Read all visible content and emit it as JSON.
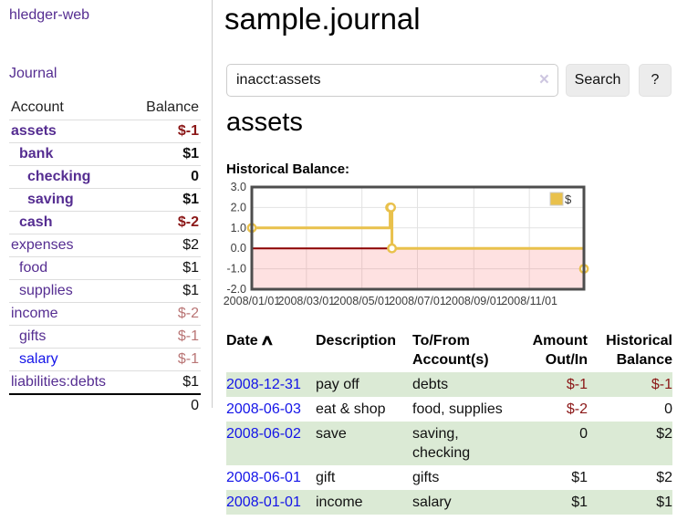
{
  "app": {
    "title": "hledger-web"
  },
  "sidebar": {
    "journal_link": "Journal",
    "account_header": "Account",
    "balance_header": "Balance",
    "total": "0",
    "accounts": [
      {
        "label": "assets",
        "depth": 0,
        "bold": true,
        "balance": "$-1",
        "neg": "strong"
      },
      {
        "label": "bank",
        "depth": 1,
        "bold": true,
        "balance": "$1",
        "neg": "none"
      },
      {
        "label": "checking",
        "depth": 2,
        "bold": true,
        "balance": "0",
        "neg": "none"
      },
      {
        "label": "saving",
        "depth": 2,
        "bold": true,
        "balance": "$1",
        "neg": "none"
      },
      {
        "label": "cash",
        "depth": 1,
        "bold": true,
        "balance": "$-2",
        "neg": "strong"
      },
      {
        "label": "expenses",
        "depth": 0,
        "bold": false,
        "balance": "$2",
        "neg": "none"
      },
      {
        "label": "food",
        "depth": 1,
        "bold": false,
        "balance": "$1",
        "neg": "none"
      },
      {
        "label": "supplies",
        "depth": 1,
        "bold": false,
        "balance": "$1",
        "neg": "none"
      },
      {
        "label": "income",
        "depth": 0,
        "bold": false,
        "balance": "$-2",
        "neg": "soft"
      },
      {
        "label": "gifts",
        "depth": 1,
        "bold": false,
        "balance": "$-1",
        "neg": "soft"
      },
      {
        "label": "salary",
        "depth": 1,
        "bold": false,
        "balance": "$-1",
        "neg": "soft",
        "link_color": "blue"
      },
      {
        "label": "liabilities:debts",
        "depth": 0,
        "bold": false,
        "balance": "$1",
        "neg": "none"
      }
    ]
  },
  "main": {
    "title": "sample.journal",
    "search": {
      "value": "inacct:assets",
      "clear_icon": "×",
      "button_label": "Search",
      "help_label": "?"
    },
    "account_heading": "assets",
    "chart_label": "Historical Balance:"
  },
  "chart_data": {
    "type": "line",
    "step": true,
    "title": "Historical Balance",
    "legend": {
      "label": "$",
      "position": "top-right"
    },
    "series": [
      {
        "name": "$",
        "color": "#e9c14c",
        "points": [
          {
            "date": "2008-01-01",
            "day": 0,
            "value": 1
          },
          {
            "date": "2008-06-01",
            "day": 152,
            "value": 2
          },
          {
            "date": "2008-06-02",
            "day": 153,
            "value": 2
          },
          {
            "date": "2008-06-03",
            "day": 154,
            "value": 0
          },
          {
            "date": "2008-12-31",
            "day": 365,
            "value": -1
          }
        ]
      }
    ],
    "ylim": [
      -2,
      3
    ],
    "yticks": [
      3.0,
      2.0,
      1.0,
      0.0,
      -1.0,
      -2.0
    ],
    "xticks": [
      {
        "label": "2008/01/01",
        "day": 0
      },
      {
        "label": "2008/03/01",
        "day": 60
      },
      {
        "label": "2008/05/01",
        "day": 121
      },
      {
        "label": "2008/07/01",
        "day": 182
      },
      {
        "label": "2008/09/01",
        "day": 244
      },
      {
        "label": "2008/11/01",
        "day": 305
      }
    ],
    "xrange_days": [
      0,
      365
    ],
    "grid": true,
    "colors": {
      "grid": "#e2e2e2",
      "border": "#4d4d4d",
      "negative_region": "rgba(250,120,120,0.22)",
      "zero_line": "#8b0000",
      "tick_text": "#3d3d3d"
    }
  },
  "register": {
    "headers": {
      "date": "Date",
      "description": "Description",
      "accounts": "To/From Account(s)",
      "amount": "Amount Out/In",
      "balance": "Historical Balance"
    },
    "sort_indicator": "∧",
    "rows": [
      {
        "date": "2008-12-31",
        "description": "pay off",
        "accounts": "debts",
        "amount": "$-1",
        "amount_neg": true,
        "balance": "$-1",
        "balance_neg": true
      },
      {
        "date": "2008-06-03",
        "description": "eat & shop",
        "accounts": "food, supplies",
        "amount": "$-2",
        "amount_neg": true,
        "balance": "0",
        "balance_neg": false
      },
      {
        "date": "2008-06-02",
        "description": "save",
        "accounts": "saving, checking",
        "amount": "0",
        "amount_neg": false,
        "balance": "$2",
        "balance_neg": false
      },
      {
        "date": "2008-06-01",
        "description": "gift",
        "accounts": "gifts",
        "amount": "$1",
        "amount_neg": false,
        "balance": "$2",
        "balance_neg": false
      },
      {
        "date": "2008-01-01",
        "description": "income",
        "accounts": "salary",
        "amount": "$1",
        "amount_neg": false,
        "balance": "$1",
        "balance_neg": false
      }
    ]
  }
}
